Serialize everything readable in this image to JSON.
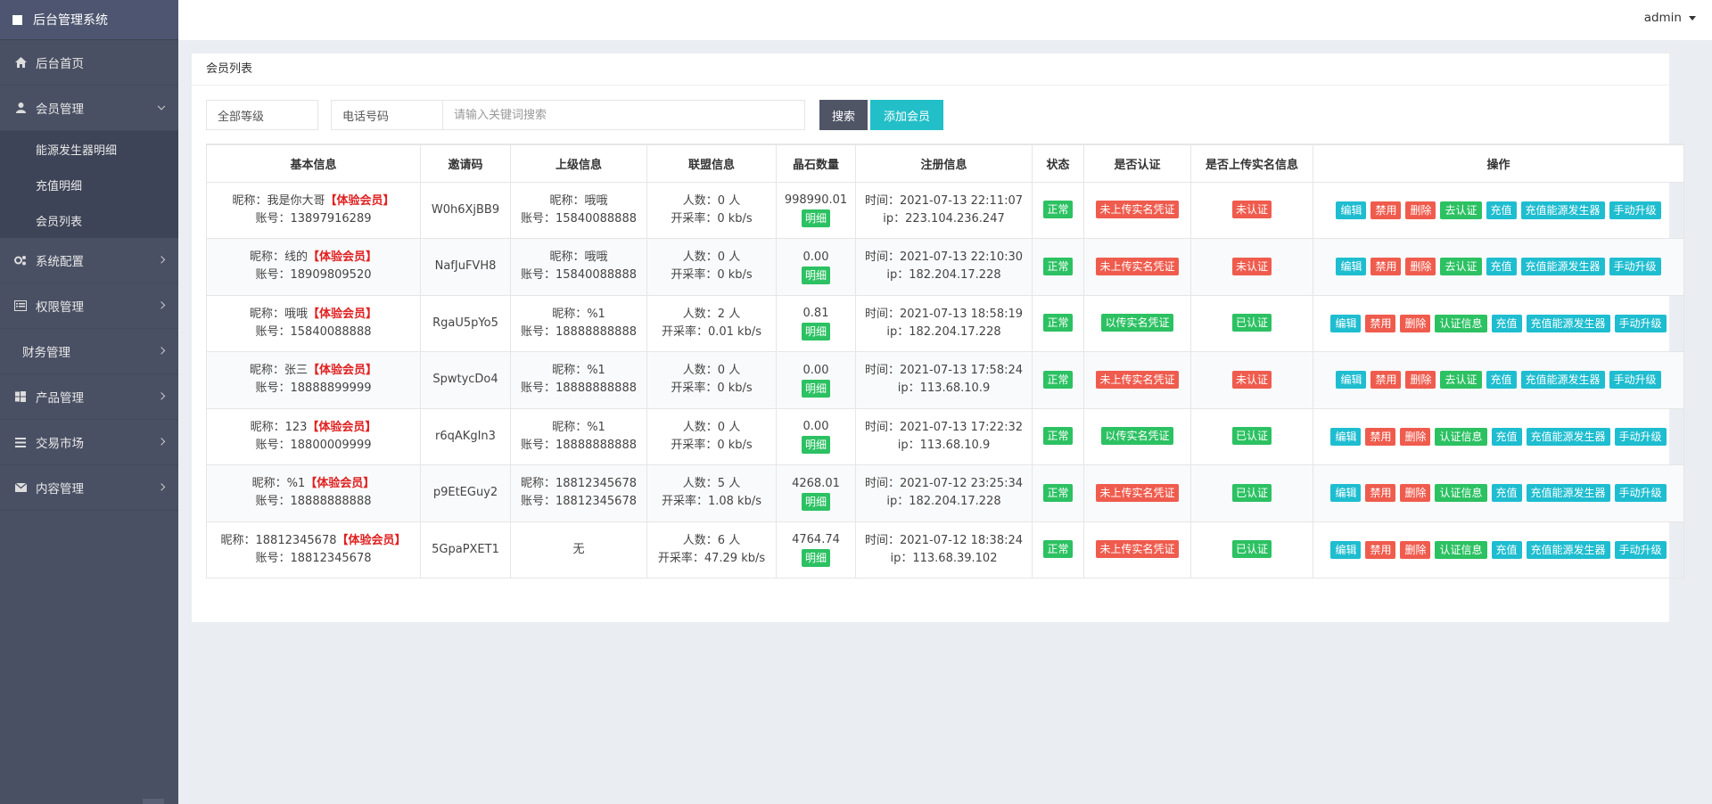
{
  "app_title": "后台管理系统",
  "user": "admin",
  "sidebar": {
    "items": [
      {
        "label": "后台首页"
      },
      {
        "label": "会员管理"
      },
      {
        "label": "系统配置"
      },
      {
        "label": "权限管理"
      },
      {
        "label": "财务管理"
      },
      {
        "label": "产品管理"
      },
      {
        "label": "交易市场"
      },
      {
        "label": "内容管理"
      }
    ],
    "submenu": [
      "能源发生器明细",
      "充值明细",
      "会员列表"
    ]
  },
  "panel": {
    "title": "会员列表",
    "level_select": "全部等级",
    "field_select": "电话号码",
    "search_placeholder": "请输入关键词搜索",
    "search_label": "搜索",
    "add_label": "添加会员"
  },
  "table": {
    "headers": [
      "基本信息",
      "邀请码",
      "上级信息",
      "联盟信息",
      "晶石数量",
      "注册信息",
      "状态",
      "是否认证",
      "是否上传实名信息",
      "操作"
    ],
    "detail_label": "明细",
    "rows": [
      {
        "nick": "昵称：我是你大哥",
        "tier": "【体验会员】",
        "account": "账号：13897916289",
        "code": "W0h6XjBB9",
        "up_nick": "昵称：哦哦",
        "up_acc": "账号：15840088888",
        "people": "人数：0 人",
        "rate": "开采率：0 kb/s",
        "stone": "998990.01",
        "time": "时间：2021-07-13 22:11:07",
        "ip": "ip：223.104.236.247",
        "status": "正常",
        "auth": "未上传实名凭证",
        "upload": "未认证",
        "op_auth": "去认证"
      },
      {
        "nick": "昵称：线的",
        "tier": "【体验会员】",
        "account": "账号：18909809520",
        "code": "NafJuFVH8",
        "up_nick": "昵称：哦哦",
        "up_acc": "账号：15840088888",
        "people": "人数：0 人",
        "rate": "开采率：0 kb/s",
        "stone": "0.00",
        "time": "时间：2021-07-13 22:10:30",
        "ip": "ip：182.204.17.228",
        "status": "正常",
        "auth": "未上传实名凭证",
        "upload": "未认证",
        "op_auth": "去认证"
      },
      {
        "nick": "昵称：哦哦",
        "tier": "【体验会员】",
        "account": "账号：15840088888",
        "code": "RgaU5pYo5",
        "up_nick": "昵称：%1",
        "up_acc": "账号：18888888888",
        "people": "人数：2 人",
        "rate": "开采率：0.01 kb/s",
        "stone": "0.81",
        "time": "时间：2021-07-13 18:58:19",
        "ip": "ip：182.204.17.228",
        "status": "正常",
        "auth": "以传实名凭证",
        "upload": "已认证",
        "op_auth": "认证信息"
      },
      {
        "nick": "昵称：张三",
        "tier": "【体验会员】",
        "account": "账号：18888899999",
        "code": "SpwtycDo4",
        "up_nick": "昵称：%1",
        "up_acc": "账号：18888888888",
        "people": "人数：0 人",
        "rate": "开采率：0 kb/s",
        "stone": "0.00",
        "time": "时间：2021-07-13 17:58:24",
        "ip": "ip：113.68.10.9",
        "status": "正常",
        "auth": "未上传实名凭证",
        "upload": "未认证",
        "op_auth": "去认证"
      },
      {
        "nick": "昵称：123",
        "tier": "【体验会员】",
        "account": "账号：18800009999",
        "code": "r6qAKgIn3",
        "up_nick": "昵称：%1",
        "up_acc": "账号：18888888888",
        "people": "人数：0 人",
        "rate": "开采率：0 kb/s",
        "stone": "0.00",
        "time": "时间：2021-07-13 17:22:32",
        "ip": "ip：113.68.10.9",
        "status": "正常",
        "auth": "以传实名凭证",
        "upload": "已认证",
        "op_auth": "认证信息"
      },
      {
        "nick": "昵称：%1",
        "tier": "【体验会员】",
        "account": "账号：18888888888",
        "code": "p9EtEGuy2",
        "up_nick": "昵称：18812345678",
        "up_acc": "账号：18812345678",
        "people": "人数：5 人",
        "rate": "开采率：1.08 kb/s",
        "stone": "4268.01",
        "time": "时间：2021-07-12 23:25:34",
        "ip": "ip：182.204.17.228",
        "status": "正常",
        "auth": "未上传实名凭证",
        "upload": "已认证",
        "op_auth": "认证信息"
      },
      {
        "nick": "昵称：18812345678",
        "tier": "【体验会员】",
        "account": "账号：18812345678",
        "code": "5GpaPXET1",
        "up_nick": "无",
        "up_acc": "",
        "people": "人数：6 人",
        "rate": "开采率：47.29 kb/s",
        "stone": "4764.74",
        "time": "时间：2021-07-12 18:38:24",
        "ip": "ip：113.68.39.102",
        "status": "正常",
        "auth": "未上传实名凭证",
        "upload": "已认证",
        "op_auth": "认证信息"
      }
    ],
    "ops": {
      "edit": "编辑",
      "ban": "禁用",
      "del": "删除",
      "recharge": "充值",
      "gen": "充值能源发生器",
      "upgrade": "手动升级"
    }
  }
}
